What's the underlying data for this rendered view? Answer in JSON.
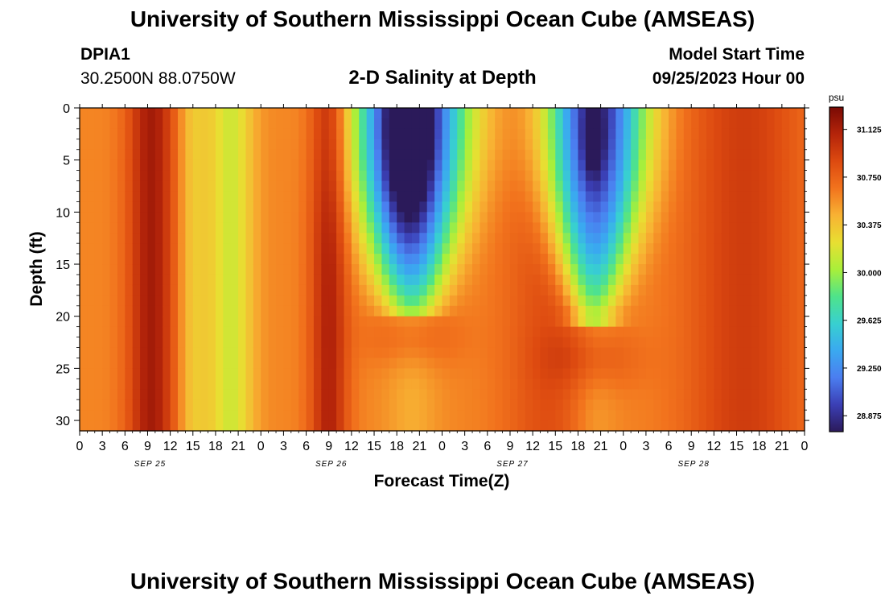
{
  "header": {
    "title": "University of Southern Mississippi Ocean Cube (AMSEAS)",
    "station_id": "DPIA1",
    "station_coords": "30.2500N  88.0750W",
    "model_start_label": "Model Start Time",
    "model_start_value": "09/25/2023 Hour 00",
    "footer_title": "University of Southern Mississippi Ocean Cube (AMSEAS)"
  },
  "chart_data": {
    "type": "heatmap",
    "title": "2-D Salinity at Depth",
    "xlabel": "Forecast Time(Z)",
    "ylabel": "Depth (ft)",
    "x_range_hours": [
      0,
      96
    ],
    "ylim": [
      0,
      31
    ],
    "y_ticks": [
      0,
      5,
      10,
      15,
      20,
      25,
      30
    ],
    "x_tick_labels": [
      "0",
      "3",
      "6",
      "9",
      "12",
      "15",
      "18",
      "21",
      "0",
      "3",
      "6",
      "9",
      "12",
      "15",
      "18",
      "21",
      "0",
      "3",
      "6",
      "9",
      "12",
      "15",
      "18",
      "21",
      "0",
      "3",
      "6",
      "9",
      "12",
      "15",
      "18",
      "21",
      "0"
    ],
    "date_labels": [
      "SEP 25",
      "SEP 26",
      "SEP 27",
      "SEP 28"
    ],
    "colorbar": {
      "unit": "psu",
      "ticks": [
        "31.125",
        "30.750",
        "30.375",
        "30.000",
        "29.625",
        "29.250",
        "28.875"
      ],
      "range": [
        28.75,
        31.3
      ],
      "colors": [
        "#2b1a5a",
        "#3b3fb5",
        "#4b7ef0",
        "#3aa9f0",
        "#38d0d0",
        "#4fe38a",
        "#a9ef3a",
        "#e8df32",
        "#f8b233",
        "#f2731d",
        "#dd4a10",
        "#b4240a",
        "#7a0a04"
      ]
    },
    "series_note": "Salinity 28.8-31.2 psu; low-salinity intrusions near surface around Sep 26 18Z-21Z and Sep 27 18Z-21Z, penetrating to ~20 ft."
  }
}
